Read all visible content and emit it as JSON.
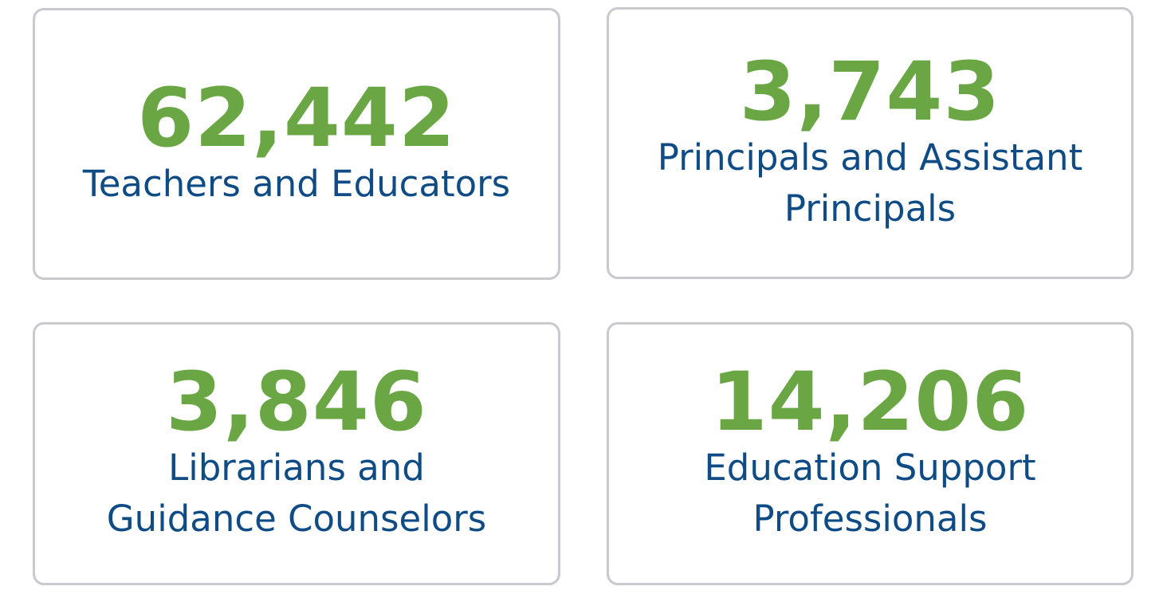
{
  "cards": [
    {
      "value": "62,442",
      "label": [
        "Teachers and Educators"
      ]
    },
    {
      "value": "3,743",
      "label": [
        "Principals and Assistant",
        "Principals"
      ]
    },
    {
      "value": "3,846",
      "label": [
        "Librarians and",
        "Guidance Counselors"
      ]
    },
    {
      "value": "14,206",
      "label": [
        "Education Support",
        "Professionals"
      ]
    }
  ]
}
